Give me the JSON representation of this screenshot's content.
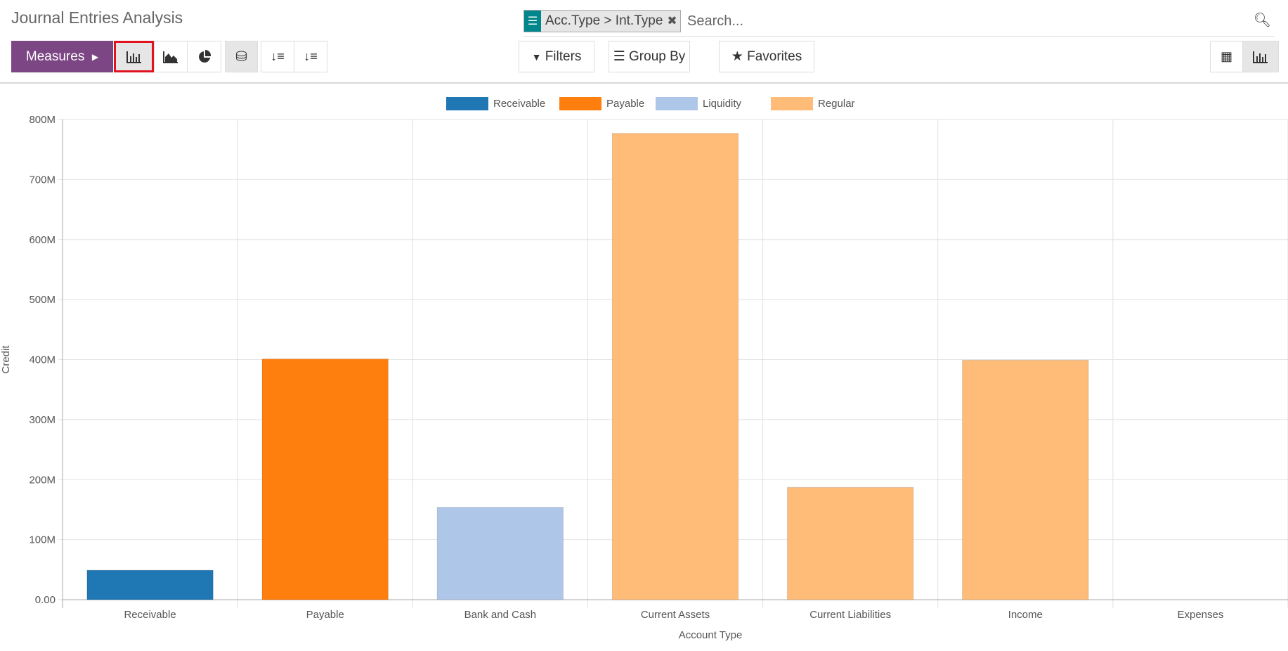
{
  "header": {
    "title": "Journal Entries Analysis"
  },
  "search": {
    "facet_icon": "list-icon",
    "facet_value": "Acc.Type > Int.Type",
    "remove_icon": "close-icon",
    "placeholder": "Search...",
    "search_icon": "search-icon"
  },
  "toolbar": {
    "measures_label": "Measures",
    "filters_label": "Filters",
    "groupby_label": "Group By",
    "favorites_label": "Favorites",
    "active_chart": "bar",
    "stacked": true,
    "active_view": "graph"
  },
  "colors": {
    "accent": "#7c4684",
    "Receivable": "#1f77b4",
    "Payable": "#ff7f0e",
    "Liquidity": "#aec7e8",
    "Regular": "#ffbb78"
  },
  "chart_data": {
    "type": "bar",
    "categories": [
      "Receivable",
      "Payable",
      "Bank and Cash",
      "Current Assets",
      "Current Liabilities",
      "Income",
      "Expenses"
    ],
    "series": [
      {
        "name": "Receivable",
        "values": [
          49,
          0,
          0,
          0,
          0,
          0,
          0
        ]
      },
      {
        "name": "Payable",
        "values": [
          0,
          401,
          0,
          0,
          0,
          0,
          0
        ]
      },
      {
        "name": "Liquidity",
        "values": [
          0,
          0,
          154,
          0,
          0,
          0,
          0
        ]
      },
      {
        "name": "Regular",
        "values": [
          0,
          0,
          0,
          777,
          187,
          399,
          0
        ]
      }
    ],
    "value_unit": "M",
    "xlabel": "Account Type",
    "ylabel": "Credit",
    "ylim": [
      0,
      800
    ],
    "yticks": [
      "0.00",
      "100M",
      "200M",
      "300M",
      "400M",
      "500M",
      "600M",
      "700M",
      "800M"
    ],
    "grid": true,
    "legend": "top",
    "stacked": true
  }
}
